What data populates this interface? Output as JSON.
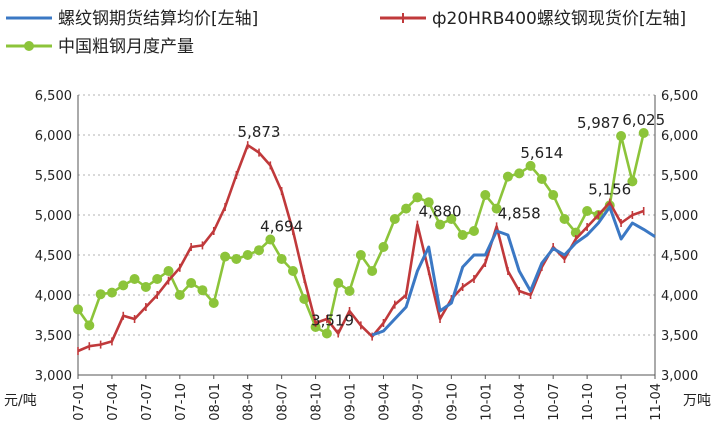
{
  "chart_data": {
    "type": "line",
    "legend": [
      {
        "label": "螺纹钢期货结算均价[左轴]",
        "color": "#3b78c4",
        "marker": "none"
      },
      {
        "label": "ф20HRB400螺纹钢现货价[左轴]",
        "color": "#c0393b",
        "marker": "plus"
      },
      {
        "label": "中国粗钢月度产量",
        "color": "#8cc43a",
        "marker": "circle"
      }
    ],
    "left_axis": {
      "unit": "元/吨",
      "min": 3000,
      "max": 6500,
      "ticks": [
        "3,000",
        "3,500",
        "4,000",
        "4,500",
        "5,000",
        "5,500",
        "6,000",
        "6,500"
      ]
    },
    "right_axis": {
      "unit": "万吨",
      "min": 3000,
      "max": 6500,
      "ticks": [
        "3,000",
        "3,500",
        "4,000",
        "4,500",
        "5,000",
        "5,500",
        "6,000",
        "6,500"
      ]
    },
    "x_ticks": [
      "07-01",
      "07-04",
      "07-07",
      "07-10",
      "08-01",
      "08-04",
      "08-07",
      "08-10",
      "09-01",
      "09-04",
      "09-07",
      "09-10",
      "10-01",
      "10-04",
      "10-07",
      "10-10",
      "11-01",
      "11-04"
    ],
    "annotations": [
      {
        "text": "5,873",
        "x": 16.0,
        "y": 5873
      },
      {
        "text": "4,694",
        "x": 18.0,
        "y": 4694
      },
      {
        "text": "3,519",
        "x": 22.5,
        "y": 3519
      },
      {
        "text": "4,880",
        "x": 32.0,
        "y": 4880
      },
      {
        "text": "4,858",
        "x": 39.0,
        "y": 4858
      },
      {
        "text": "5,614",
        "x": 41.0,
        "y": 5614
      },
      {
        "text": "5,987",
        "x": 46.0,
        "y": 5987
      },
      {
        "text": "5,156",
        "x": 47.0,
        "y": 5156
      },
      {
        "text": "6,025",
        "x": 50.0,
        "y": 6025
      }
    ],
    "series": [
      {
        "name": "中国粗钢月度产量",
        "color": "#8cc43a",
        "marker": "circle",
        "x": [
          0,
          1,
          2,
          3,
          4,
          5,
          6,
          7,
          8,
          9,
          10,
          11,
          12,
          13,
          14,
          15,
          16,
          17,
          18,
          19,
          20,
          21,
          22,
          23,
          24,
          25,
          26,
          27,
          28,
          29,
          30,
          31,
          32,
          33,
          34,
          35,
          36,
          37,
          38,
          39,
          40,
          41,
          42,
          43,
          44,
          45,
          46,
          47,
          48,
          49,
          50
        ],
        "values": [
          3820,
          3620,
          4010,
          4030,
          4120,
          4200,
          4100,
          4200,
          4300,
          4000,
          4150,
          4060,
          3900,
          4480,
          4450,
          4500,
          4560,
          4694,
          4450,
          4300,
          3950,
          3600,
          3519,
          4150,
          4050,
          4500,
          4300,
          4600,
          4950,
          5080,
          5220,
          5160,
          4880,
          4950,
          4750,
          4800,
          5250,
          5080,
          5480,
          5520,
          5614,
          5450,
          5250,
          4950,
          4780,
          5050,
          5000,
          5120,
          5987,
          5420,
          6025
        ]
      },
      {
        "name": "ф20HRB400螺纹钢现货价",
        "color": "#c0393b",
        "marker": "plus",
        "x": [
          0,
          1,
          2,
          3,
          4,
          5,
          6,
          7,
          8,
          9,
          10,
          11,
          12,
          13,
          14,
          15,
          16,
          17,
          18,
          19,
          20,
          21,
          22,
          23,
          24,
          25,
          26,
          27,
          28,
          29,
          30,
          31,
          32,
          33,
          34,
          35,
          36,
          37,
          38,
          39,
          40,
          41,
          42,
          43,
          44,
          45,
          46,
          47,
          48,
          49,
          50
        ],
        "values": [
          3300,
          3360,
          3380,
          3420,
          3740,
          3700,
          3850,
          4000,
          4180,
          4340,
          4600,
          4620,
          4800,
          5100,
          5500,
          5873,
          5780,
          5620,
          5300,
          4800,
          4200,
          3650,
          3700,
          3519,
          3800,
          3620,
          3480,
          3650,
          3880,
          4000,
          4880,
          4300,
          3700,
          3950,
          4100,
          4200,
          4400,
          4858,
          4300,
          4050,
          4000,
          4350,
          4600,
          4450,
          4700,
          4850,
          5000,
          5156,
          4900,
          5000,
          5050
        ]
      },
      {
        "name": "螺纹钢期货结算均价",
        "color": "#3b78c4",
        "marker": "none",
        "x": [
          26,
          27,
          28,
          29,
          30,
          31,
          32,
          33,
          34,
          35,
          36,
          37,
          38,
          39,
          40,
          41,
          42,
          43,
          44,
          45,
          46,
          47,
          48,
          49,
          50,
          51
        ],
        "values": [
          3500,
          3550,
          3700,
          3850,
          4300,
          4600,
          3800,
          3900,
          4350,
          4500,
          4500,
          4800,
          4750,
          4300,
          4050,
          4400,
          4580,
          4500,
          4650,
          4750,
          4900,
          5100,
          4700,
          4900,
          4820,
          4730
        ]
      }
    ]
  }
}
